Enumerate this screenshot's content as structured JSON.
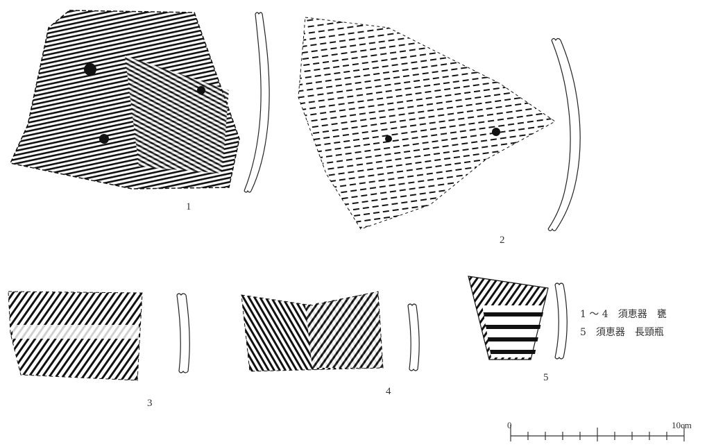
{
  "figure": {
    "numbers": [
      "1",
      "2",
      "3",
      "4",
      "5"
    ],
    "legend": {
      "line1": "1 ～ 4　須恵器　甕",
      "line2": "5　須恵器　長頸瓶"
    },
    "scale": {
      "zero": "0",
      "max": "10cm"
    }
  }
}
